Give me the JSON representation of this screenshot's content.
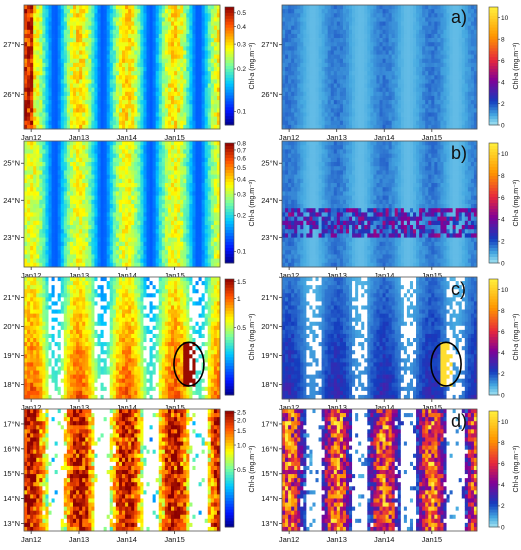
{
  "figure": {
    "panel_letters": [
      "a)",
      "b)",
      "c)",
      "d)"
    ]
  },
  "chart_data": [
    {
      "type": "heatmap",
      "panel": "left-1",
      "x_ticks": [
        "Jan12",
        "Jan13",
        "Jan14",
        "Jan15"
      ],
      "y_ticks": [
        "26°N",
        "27°N"
      ],
      "ylim_deg": [
        25.3,
        27.8
      ],
      "y_tick_values": [
        26,
        27
      ],
      "colorbar": {
        "label": "Chl-a (mg.m⁻³)",
        "ticks": [
          "0.1",
          "0.2",
          "0.3",
          "0.4",
          "0.5"
        ],
        "tick_values": [
          0.1,
          0.2,
          0.3,
          0.4,
          0.5
        ],
        "range": [
          0.08,
          0.55
        ],
        "log": true,
        "colormap": "jet"
      },
      "pattern": {
        "base": 0.12,
        "seasonal_peak": 0.3,
        "hot_strip_left": 0.5
      }
    },
    {
      "type": "heatmap",
      "panel": "right-1",
      "letter": "a)",
      "x_ticks": [
        "Jan12",
        "Jan13",
        "Jan14",
        "Jan15"
      ],
      "y_ticks": [
        "26°N",
        "27°N"
      ],
      "ylim_deg": [
        25.3,
        27.8
      ],
      "y_tick_values": [
        26,
        27
      ],
      "colorbar": {
        "label": "Chl-a (mg.m⁻³)",
        "ticks": [
          "0",
          "2",
          "4",
          "6",
          "8",
          "10"
        ],
        "tick_values": [
          0,
          2,
          4,
          6,
          8,
          10
        ],
        "range": [
          0,
          11
        ],
        "log": false,
        "colormap": "blue-yellow"
      },
      "pattern": {
        "base": 0.6,
        "seasonal_peak": 1.5
      }
    },
    {
      "type": "heatmap",
      "panel": "left-2",
      "x_ticks": [
        "Jan12",
        "Jan13",
        "Jan14",
        "Jan15"
      ],
      "y_ticks": [
        "23°N",
        "24°N",
        "25°N"
      ],
      "ylim_deg": [
        22.2,
        25.6
      ],
      "y_tick_values": [
        23,
        24,
        25
      ],
      "colorbar": {
        "label": "Chl-a (mg.m⁻³)",
        "ticks": [
          "0.1",
          "0.2",
          "0.3",
          "0.4",
          "0.5",
          "0.6",
          "0.7",
          "0.8"
        ],
        "tick_values": [
          0.1,
          0.2,
          0.3,
          0.4,
          0.5,
          0.6,
          0.7,
          0.8
        ],
        "range": [
          0.08,
          0.8
        ],
        "log": true,
        "colormap": "jet"
      },
      "pattern": {
        "base": 0.13,
        "seasonal_peak": 0.35
      }
    },
    {
      "type": "heatmap",
      "panel": "right-2",
      "letter": "b)",
      "x_ticks": [
        "Jan12",
        "Jan13",
        "Jan14",
        "Jan15"
      ],
      "y_ticks": [
        "23°N",
        "24°N",
        "25°N"
      ],
      "ylim_deg": [
        22.2,
        25.6
      ],
      "y_tick_values": [
        23,
        24,
        25
      ],
      "colorbar": {
        "label": "Chl-a (mg.m⁻³)",
        "ticks": [
          "0",
          "2",
          "4",
          "6",
          "8",
          "10"
        ],
        "tick_values": [
          0,
          2,
          4,
          6,
          8,
          10
        ],
        "range": [
          0,
          11
        ],
        "log": false,
        "colormap": "blue-yellow"
      },
      "pattern": {
        "base": 0.6,
        "seasonal_peak": 1.5,
        "band_lat": [
          22.95,
          23.75
        ],
        "band_value": 3.2
      }
    },
    {
      "type": "heatmap",
      "panel": "left-3",
      "x_ticks": [
        "Jan12",
        "Jan13",
        "Jan14",
        "Jan15"
      ],
      "y_ticks": [
        "18°N",
        "19°N",
        "20°N",
        "21°N"
      ],
      "ylim_deg": [
        17.5,
        21.7
      ],
      "y_tick_values": [
        18,
        19,
        20,
        21
      ],
      "colorbar": {
        "label": "Chl-a (mg.m⁻³)",
        "ticks": [
          "0.5",
          "1",
          "1.5"
        ],
        "tick_values": [
          0.5,
          1,
          1.5
        ],
        "range": [
          0.1,
          1.6
        ],
        "log": true,
        "colormap": "jet"
      },
      "pattern": {
        "base": 0.2,
        "seasonal_peak": 0.6
      },
      "annotation": {
        "shape": "ellipse",
        "x_time": 2015.3,
        "lat_center": 18.7,
        "lat_halfwidth": 0.75
      }
    },
    {
      "type": "heatmap",
      "panel": "right-3",
      "letter": "c)",
      "x_ticks": [
        "Jan12",
        "Jan13",
        "Jan14",
        "Jan15"
      ],
      "y_ticks": [
        "18°N",
        "19°N",
        "20°N",
        "21°N"
      ],
      "ylim_deg": [
        17.5,
        21.7
      ],
      "y_tick_values": [
        18,
        19,
        20,
        21
      ],
      "colorbar": {
        "label": "Chl-a (mg.m⁻³)",
        "ticks": [
          "0",
          "2",
          "4",
          "6",
          "8",
          "10"
        ],
        "tick_values": [
          0,
          2,
          4,
          6,
          8,
          10
        ],
        "range": [
          0,
          11
        ],
        "log": false,
        "colormap": "blue-yellow"
      },
      "pattern": {
        "base": 0.7,
        "seasonal_peak": 1.6
      },
      "annotation": {
        "shape": "ellipse",
        "x_time": 2015.3,
        "lat_center": 18.7,
        "lat_halfwidth": 0.75
      }
    },
    {
      "type": "heatmap",
      "panel": "left-4",
      "x_ticks": [
        "Jan12",
        "Jan13",
        "Jan14",
        "Jan15"
      ],
      "y_ticks": [
        "13°N",
        "14°N",
        "15°N",
        "16°N",
        "17°N"
      ],
      "ylim_deg": [
        12.7,
        17.6
      ],
      "y_tick_values": [
        13,
        14,
        15,
        16,
        17
      ],
      "colorbar": {
        "label": "Chl-a (mg.m⁻³)",
        "ticks": [
          "0.5",
          "1.0",
          "1.5",
          "2.0",
          "2.5"
        ],
        "tick_values": [
          0.5,
          1.0,
          1.5,
          2.0,
          2.5
        ],
        "range": [
          0.1,
          2.6
        ],
        "log": true,
        "colormap": "jet"
      },
      "pattern": {
        "base": 0.35,
        "seasonal_peak": 1.2
      }
    },
    {
      "type": "heatmap",
      "panel": "right-4",
      "letter": "d)",
      "x_ticks": [
        "Jan12",
        "Jan13",
        "Jan14",
        "Jan15"
      ],
      "y_ticks": [
        "13°N",
        "14°N",
        "15°N",
        "16°N",
        "17°N"
      ],
      "ylim_deg": [
        12.7,
        17.6
      ],
      "y_tick_values": [
        13,
        14,
        15,
        16,
        17
      ],
      "colorbar": {
        "label": "Chl-a (mg.m⁻³)",
        "ticks": [
          "0",
          "2",
          "4",
          "6",
          "8",
          "10"
        ],
        "tick_values": [
          0,
          2,
          4,
          6,
          8,
          10
        ],
        "range": [
          0,
          11
        ],
        "log": false,
        "colormap": "blue-yellow"
      },
      "pattern": {
        "base": 1.0,
        "seasonal_peak": 4.0
      }
    }
  ]
}
